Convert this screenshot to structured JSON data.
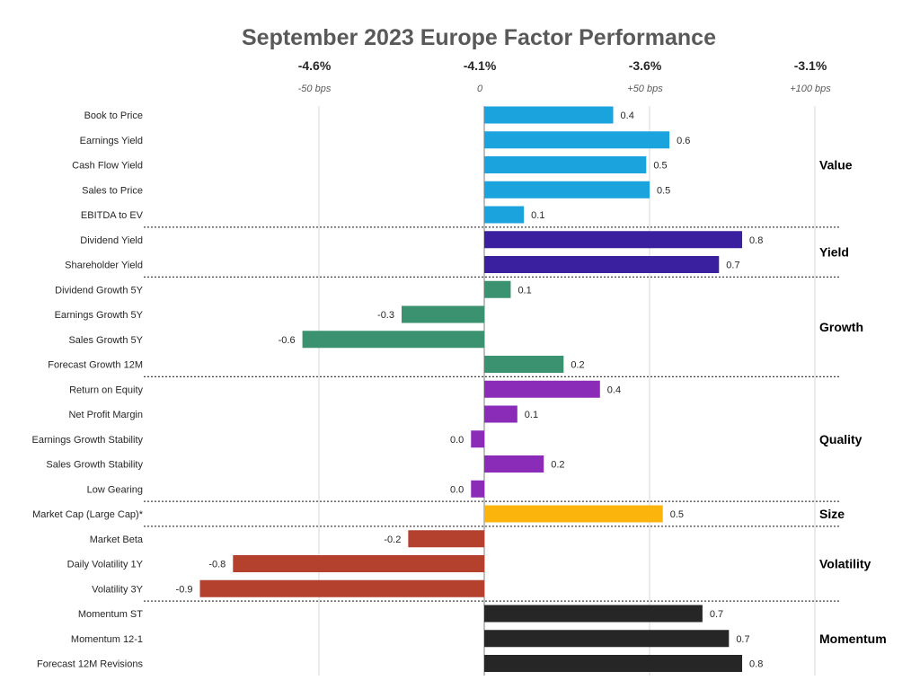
{
  "chart_data": {
    "type": "bar",
    "orientation": "horizontal",
    "title": "September 2023 Europe Factor Performance",
    "top_axis_ticks": [
      {
        "value": -50,
        "label": "-4.6%",
        "sublabel": "-50 bps"
      },
      {
        "value": 0,
        "label": "-4.1%",
        "sublabel": "0"
      },
      {
        "value": 50,
        "label": "-3.6%",
        "sublabel": "+50 bps"
      },
      {
        "value": 100,
        "label": "-3.1%",
        "sublabel": "+100 bps"
      }
    ],
    "xlim": [
      -100,
      100
    ],
    "grid": true,
    "colors": {
      "Value": "#1aa3dd",
      "Yield": "#3a1f9e",
      "Growth": "#3b9270",
      "Quality": "#8a2cb8",
      "Size": "#fbb40c",
      "Volatility": "#b4402e",
      "Momentum": "#262626"
    },
    "groups": [
      {
        "name": "Value",
        "factors": [
          {
            "label": "Book to Price",
            "value": 0.4,
            "bps": 39
          },
          {
            "label": "Earnings Yield",
            "value": 0.6,
            "bps": 56
          },
          {
            "label": "Cash Flow Yield",
            "value": 0.5,
            "bps": 49
          },
          {
            "label": "Sales to Price",
            "value": 0.5,
            "bps": 50
          },
          {
            "label": "EBITDA to EV",
            "value": 0.1,
            "bps": 12
          }
        ]
      },
      {
        "name": "Yield",
        "factors": [
          {
            "label": "Dividend Yield",
            "value": 0.8,
            "bps": 78
          },
          {
            "label": "Shareholder Yield",
            "value": 0.7,
            "bps": 71
          }
        ]
      },
      {
        "name": "Growth",
        "factors": [
          {
            "label": "Dividend Growth 5Y",
            "value": 0.1,
            "bps": 8
          },
          {
            "label": "Earnings Growth 5Y",
            "value": -0.3,
            "bps": -25
          },
          {
            "label": "Sales Growth 5Y",
            "value": -0.6,
            "bps": -55
          },
          {
            "label": "Forecast Growth 12M",
            "value": 0.2,
            "bps": 24
          }
        ]
      },
      {
        "name": "Quality",
        "factors": [
          {
            "label": "Return on Equity",
            "value": 0.4,
            "bps": 35
          },
          {
            "label": "Net Profit Margin",
            "value": 0.1,
            "bps": 10
          },
          {
            "label": "Earnings Growth Stability",
            "value": 0.0,
            "label_value": "0.0",
            "bps": -4
          },
          {
            "label": "Sales Growth Stability",
            "value": 0.2,
            "bps": 18
          },
          {
            "label": "Low Gearing",
            "value": 0.0,
            "label_value": "0.0",
            "bps": -4
          }
        ]
      },
      {
        "name": "Size",
        "factors": [
          {
            "label": "Market Cap (Large Cap)*",
            "value": 0.5,
            "bps": 54
          }
        ]
      },
      {
        "name": "Volatility",
        "factors": [
          {
            "label": "Market Beta",
            "value": -0.2,
            "bps": -23
          },
          {
            "label": "Daily Volatility 1Y",
            "value": -0.8,
            "bps": -76
          },
          {
            "label": "Volatility 3Y",
            "value": -0.9,
            "bps": -86
          }
        ]
      },
      {
        "name": "Momentum",
        "factors": [
          {
            "label": "Momentum ST",
            "value": 0.7,
            "bps": 66
          },
          {
            "label": "Momentum 12-1",
            "value": 0.7,
            "bps": 74
          },
          {
            "label": "Forecast 12M Revisions",
            "value": 0.8,
            "bps": 78
          }
        ]
      }
    ]
  }
}
